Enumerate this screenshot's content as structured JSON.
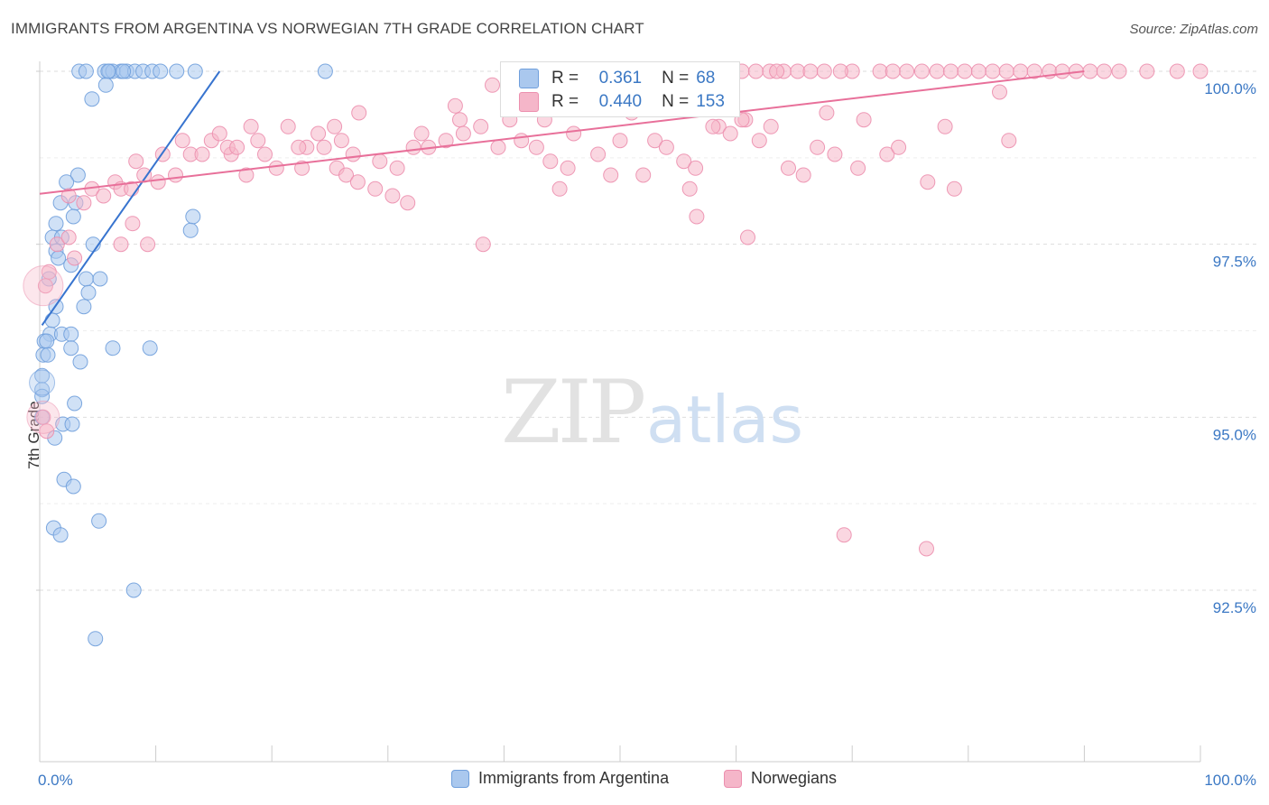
{
  "header": {
    "title": "IMMIGRANTS FROM ARGENTINA VS NORWEGIAN 7TH GRADE CORRELATION CHART",
    "source": "Source: ZipAtlas.com"
  },
  "watermark": {
    "zip": "ZIP",
    "atlas": "atlas"
  },
  "stats": [
    {
      "swatch_color": "#aac8ee",
      "r_label": "R =",
      "r_value": "0.361",
      "n_label": "N =",
      "n_value": "68"
    },
    {
      "swatch_color": "#f5b6c9",
      "r_label": "R =",
      "r_value": "0.440",
      "n_label": "N =",
      "n_value": "153"
    }
  ],
  "legend": [
    {
      "label": "Immigrants from Argentina",
      "color": "#aac8ee"
    },
    {
      "label": "Norwegians",
      "color": "#f5b6c9"
    }
  ],
  "chart_data": {
    "type": "scatter",
    "title": "IMMIGRANTS FROM ARGENTINA VS NORWEGIAN 7TH GRADE CORRELATION CHART",
    "xlabel": "",
    "ylabel": "7th Grade",
    "xlim": [
      0,
      100
    ],
    "ylim": [
      90.0,
      100.2
    ],
    "x_tick_labels": [
      "0.0%",
      "100.0%"
    ],
    "y_ticks": [
      92.5,
      95.0,
      97.5,
      100.0
    ],
    "y_tick_labels": [
      "92.5%",
      "95.0%",
      "97.5%",
      "100.0%"
    ],
    "grid": true,
    "series": [
      {
        "name": "Immigrants from Argentina",
        "color": "#6f9fdc",
        "fill": "#aac8ee",
        "line_color": "#3874cf",
        "trend": [
          [
            0.2,
            96.33
          ],
          [
            15.5,
            100.0
          ]
        ],
        "points": [
          [
            3.4,
            100
          ],
          [
            4.0,
            100
          ],
          [
            5.6,
            100
          ],
          [
            6.0,
            100
          ],
          [
            7.0,
            100
          ],
          [
            7.5,
            100
          ],
          [
            8.2,
            100
          ],
          [
            8.9,
            100
          ],
          [
            9.7,
            100
          ],
          [
            10.4,
            100
          ],
          [
            11.8,
            100
          ],
          [
            6.3,
            100
          ],
          [
            7.2,
            100
          ],
          [
            5.9,
            100
          ],
          [
            24.6,
            100
          ],
          [
            13.4,
            100
          ],
          [
            5.7,
            99.8
          ],
          [
            4.5,
            99.6
          ],
          [
            3.3,
            98.5
          ],
          [
            2.3,
            98.4
          ],
          [
            1.8,
            98.1
          ],
          [
            3.1,
            98.1
          ],
          [
            2.9,
            97.9
          ],
          [
            13.2,
            97.9
          ],
          [
            1.4,
            97.8
          ],
          [
            13.0,
            97.7
          ],
          [
            1.1,
            97.6
          ],
          [
            1.9,
            97.6
          ],
          [
            4.6,
            97.5
          ],
          [
            1.4,
            97.4
          ],
          [
            1.6,
            97.3
          ],
          [
            2.7,
            97.2
          ],
          [
            0.8,
            97.0
          ],
          [
            4.0,
            97.0
          ],
          [
            5.2,
            97.0
          ],
          [
            4.2,
            96.8
          ],
          [
            1.4,
            96.6
          ],
          [
            3.8,
            96.6
          ],
          [
            1.1,
            96.4
          ],
          [
            0.9,
            96.2
          ],
          [
            1.9,
            96.2
          ],
          [
            2.7,
            96.2
          ],
          [
            0.4,
            96.1
          ],
          [
            0.6,
            96.1
          ],
          [
            2.7,
            96.0
          ],
          [
            6.3,
            96.0
          ],
          [
            9.5,
            96.0
          ],
          [
            0.3,
            95.9
          ],
          [
            0.7,
            95.9
          ],
          [
            3.5,
            95.8
          ],
          [
            0.2,
            95.6
          ],
          [
            0.2,
            95.4
          ],
          [
            0.2,
            95.3
          ],
          [
            3.0,
            95.2
          ],
          [
            0.2,
            95.0
          ],
          [
            2.0,
            94.9
          ],
          [
            2.8,
            94.9
          ],
          [
            1.3,
            94.7
          ],
          [
            2.1,
            94.1
          ],
          [
            2.9,
            94.0
          ],
          [
            5.1,
            93.5
          ],
          [
            1.2,
            93.4
          ],
          [
            1.8,
            93.3
          ],
          [
            8.1,
            92.5
          ],
          [
            4.8,
            91.8
          ]
        ]
      },
      {
        "name": "Norwegians",
        "color": "#ec8fae",
        "fill": "#f5b6c9",
        "line_color": "#e8709a",
        "trend": [
          [
            0.0,
            98.23
          ],
          [
            90.0,
            100.0
          ]
        ],
        "points": [
          [
            55.8,
            100
          ],
          [
            57.0,
            100
          ],
          [
            58.1,
            100
          ],
          [
            59.3,
            100
          ],
          [
            60.5,
            100
          ],
          [
            61.7,
            100
          ],
          [
            62.9,
            100
          ],
          [
            64.1,
            100
          ],
          [
            65.3,
            100
          ],
          [
            66.4,
            100
          ],
          [
            67.6,
            100
          ],
          [
            70.0,
            100
          ],
          [
            72.4,
            100
          ],
          [
            74.7,
            100
          ],
          [
            77.3,
            100
          ],
          [
            78.5,
            100
          ],
          [
            79.7,
            100
          ],
          [
            80.9,
            100
          ],
          [
            82.1,
            100
          ],
          [
            83.3,
            100
          ],
          [
            84.5,
            100
          ],
          [
            85.7,
            100
          ],
          [
            87.0,
            100
          ],
          [
            88.1,
            100
          ],
          [
            89.3,
            100
          ],
          [
            90.5,
            100
          ],
          [
            91.7,
            100
          ],
          [
            93.0,
            100
          ],
          [
            95.4,
            100
          ],
          [
            98.0,
            100
          ],
          [
            100.0,
            100
          ],
          [
            63.5,
            100
          ],
          [
            69.0,
            100
          ],
          [
            73.5,
            100
          ],
          [
            76.0,
            100
          ],
          [
            39.0,
            99.8
          ],
          [
            47.0,
            99.7
          ],
          [
            50.5,
            99.6
          ],
          [
            67.8,
            99.4
          ],
          [
            35.8,
            99.5
          ],
          [
            27.5,
            99.4
          ],
          [
            43.5,
            99.3
          ],
          [
            36.2,
            99.3
          ],
          [
            40.5,
            99.3
          ],
          [
            51.0,
            99.4
          ],
          [
            55.0,
            99.5
          ],
          [
            58.5,
            99.2
          ],
          [
            60.8,
            99.3
          ],
          [
            71.0,
            99.3
          ],
          [
            78.0,
            99.2
          ],
          [
            13.0,
            98.8
          ],
          [
            16.5,
            98.8
          ],
          [
            12.3,
            99.0
          ],
          [
            16.2,
            98.9
          ],
          [
            18.8,
            99.0
          ],
          [
            19.4,
            98.8
          ],
          [
            23.0,
            98.9
          ],
          [
            24.5,
            98.9
          ],
          [
            25.6,
            98.6
          ],
          [
            20.4,
            98.6
          ],
          [
            22.6,
            98.6
          ],
          [
            26.4,
            98.5
          ],
          [
            17.8,
            98.5
          ],
          [
            27.4,
            98.4
          ],
          [
            28.9,
            98.3
          ],
          [
            30.4,
            98.2
          ],
          [
            31.7,
            98.1
          ],
          [
            26.0,
            99.0
          ],
          [
            27.0,
            98.8
          ],
          [
            29.3,
            98.7
          ],
          [
            30.8,
            98.6
          ],
          [
            32.2,
            98.9
          ],
          [
            32.9,
            99.1
          ],
          [
            33.5,
            98.9
          ],
          [
            35.0,
            99.0
          ],
          [
            36.5,
            99.1
          ],
          [
            38.0,
            99.2
          ],
          [
            39.5,
            98.9
          ],
          [
            41.5,
            99.0
          ],
          [
            42.8,
            98.9
          ],
          [
            44.0,
            98.7
          ],
          [
            45.5,
            98.6
          ],
          [
            46.0,
            99.1
          ],
          [
            48.1,
            98.8
          ],
          [
            49.2,
            98.5
          ],
          [
            50.0,
            99.0
          ],
          [
            53.0,
            99.0
          ],
          [
            54.0,
            98.9
          ],
          [
            55.5,
            98.7
          ],
          [
            56.5,
            98.6
          ],
          [
            58.0,
            99.2
          ],
          [
            59.5,
            99.1
          ],
          [
            60.5,
            99.3
          ],
          [
            62.0,
            99.0
          ],
          [
            63.0,
            99.2
          ],
          [
            64.5,
            98.6
          ],
          [
            65.8,
            98.5
          ],
          [
            67.0,
            98.9
          ],
          [
            68.5,
            98.8
          ],
          [
            70.5,
            98.6
          ],
          [
            73.0,
            98.8
          ],
          [
            74.0,
            98.9
          ],
          [
            76.5,
            98.4
          ],
          [
            78.8,
            98.3
          ],
          [
            83.5,
            99.0
          ],
          [
            82.7,
            99.7
          ],
          [
            2.5,
            98.2
          ],
          [
            3.8,
            98.1
          ],
          [
            4.5,
            98.3
          ],
          [
            5.5,
            98.2
          ],
          [
            6.5,
            98.4
          ],
          [
            7.0,
            98.3
          ],
          [
            7.9,
            98.3
          ],
          [
            9.0,
            98.5
          ],
          [
            10.2,
            98.4
          ],
          [
            11.7,
            98.5
          ],
          [
            8.3,
            98.7
          ],
          [
            10.6,
            98.8
          ],
          [
            14.0,
            98.8
          ],
          [
            14.8,
            99.0
          ],
          [
            15.5,
            99.1
          ],
          [
            17.0,
            98.9
          ],
          [
            18.2,
            99.2
          ],
          [
            21.4,
            99.2
          ],
          [
            22.3,
            98.9
          ],
          [
            24.0,
            99.1
          ],
          [
            25.4,
            99.2
          ],
          [
            1.5,
            97.5
          ],
          [
            2.5,
            97.6
          ],
          [
            3.0,
            97.3
          ],
          [
            0.8,
            97.1
          ],
          [
            0.5,
            96.9
          ],
          [
            7.0,
            97.5
          ],
          [
            9.3,
            97.5
          ],
          [
            8.0,
            97.8
          ],
          [
            38.2,
            97.5
          ],
          [
            56.6,
            97.9
          ],
          [
            61.0,
            97.6
          ],
          [
            0.3,
            95.0
          ],
          [
            0.6,
            94.8
          ],
          [
            69.3,
            93.3
          ],
          [
            76.4,
            93.1
          ],
          [
            56.0,
            98.3
          ],
          [
            52.0,
            98.5
          ],
          [
            44.8,
            98.3
          ]
        ]
      }
    ]
  }
}
